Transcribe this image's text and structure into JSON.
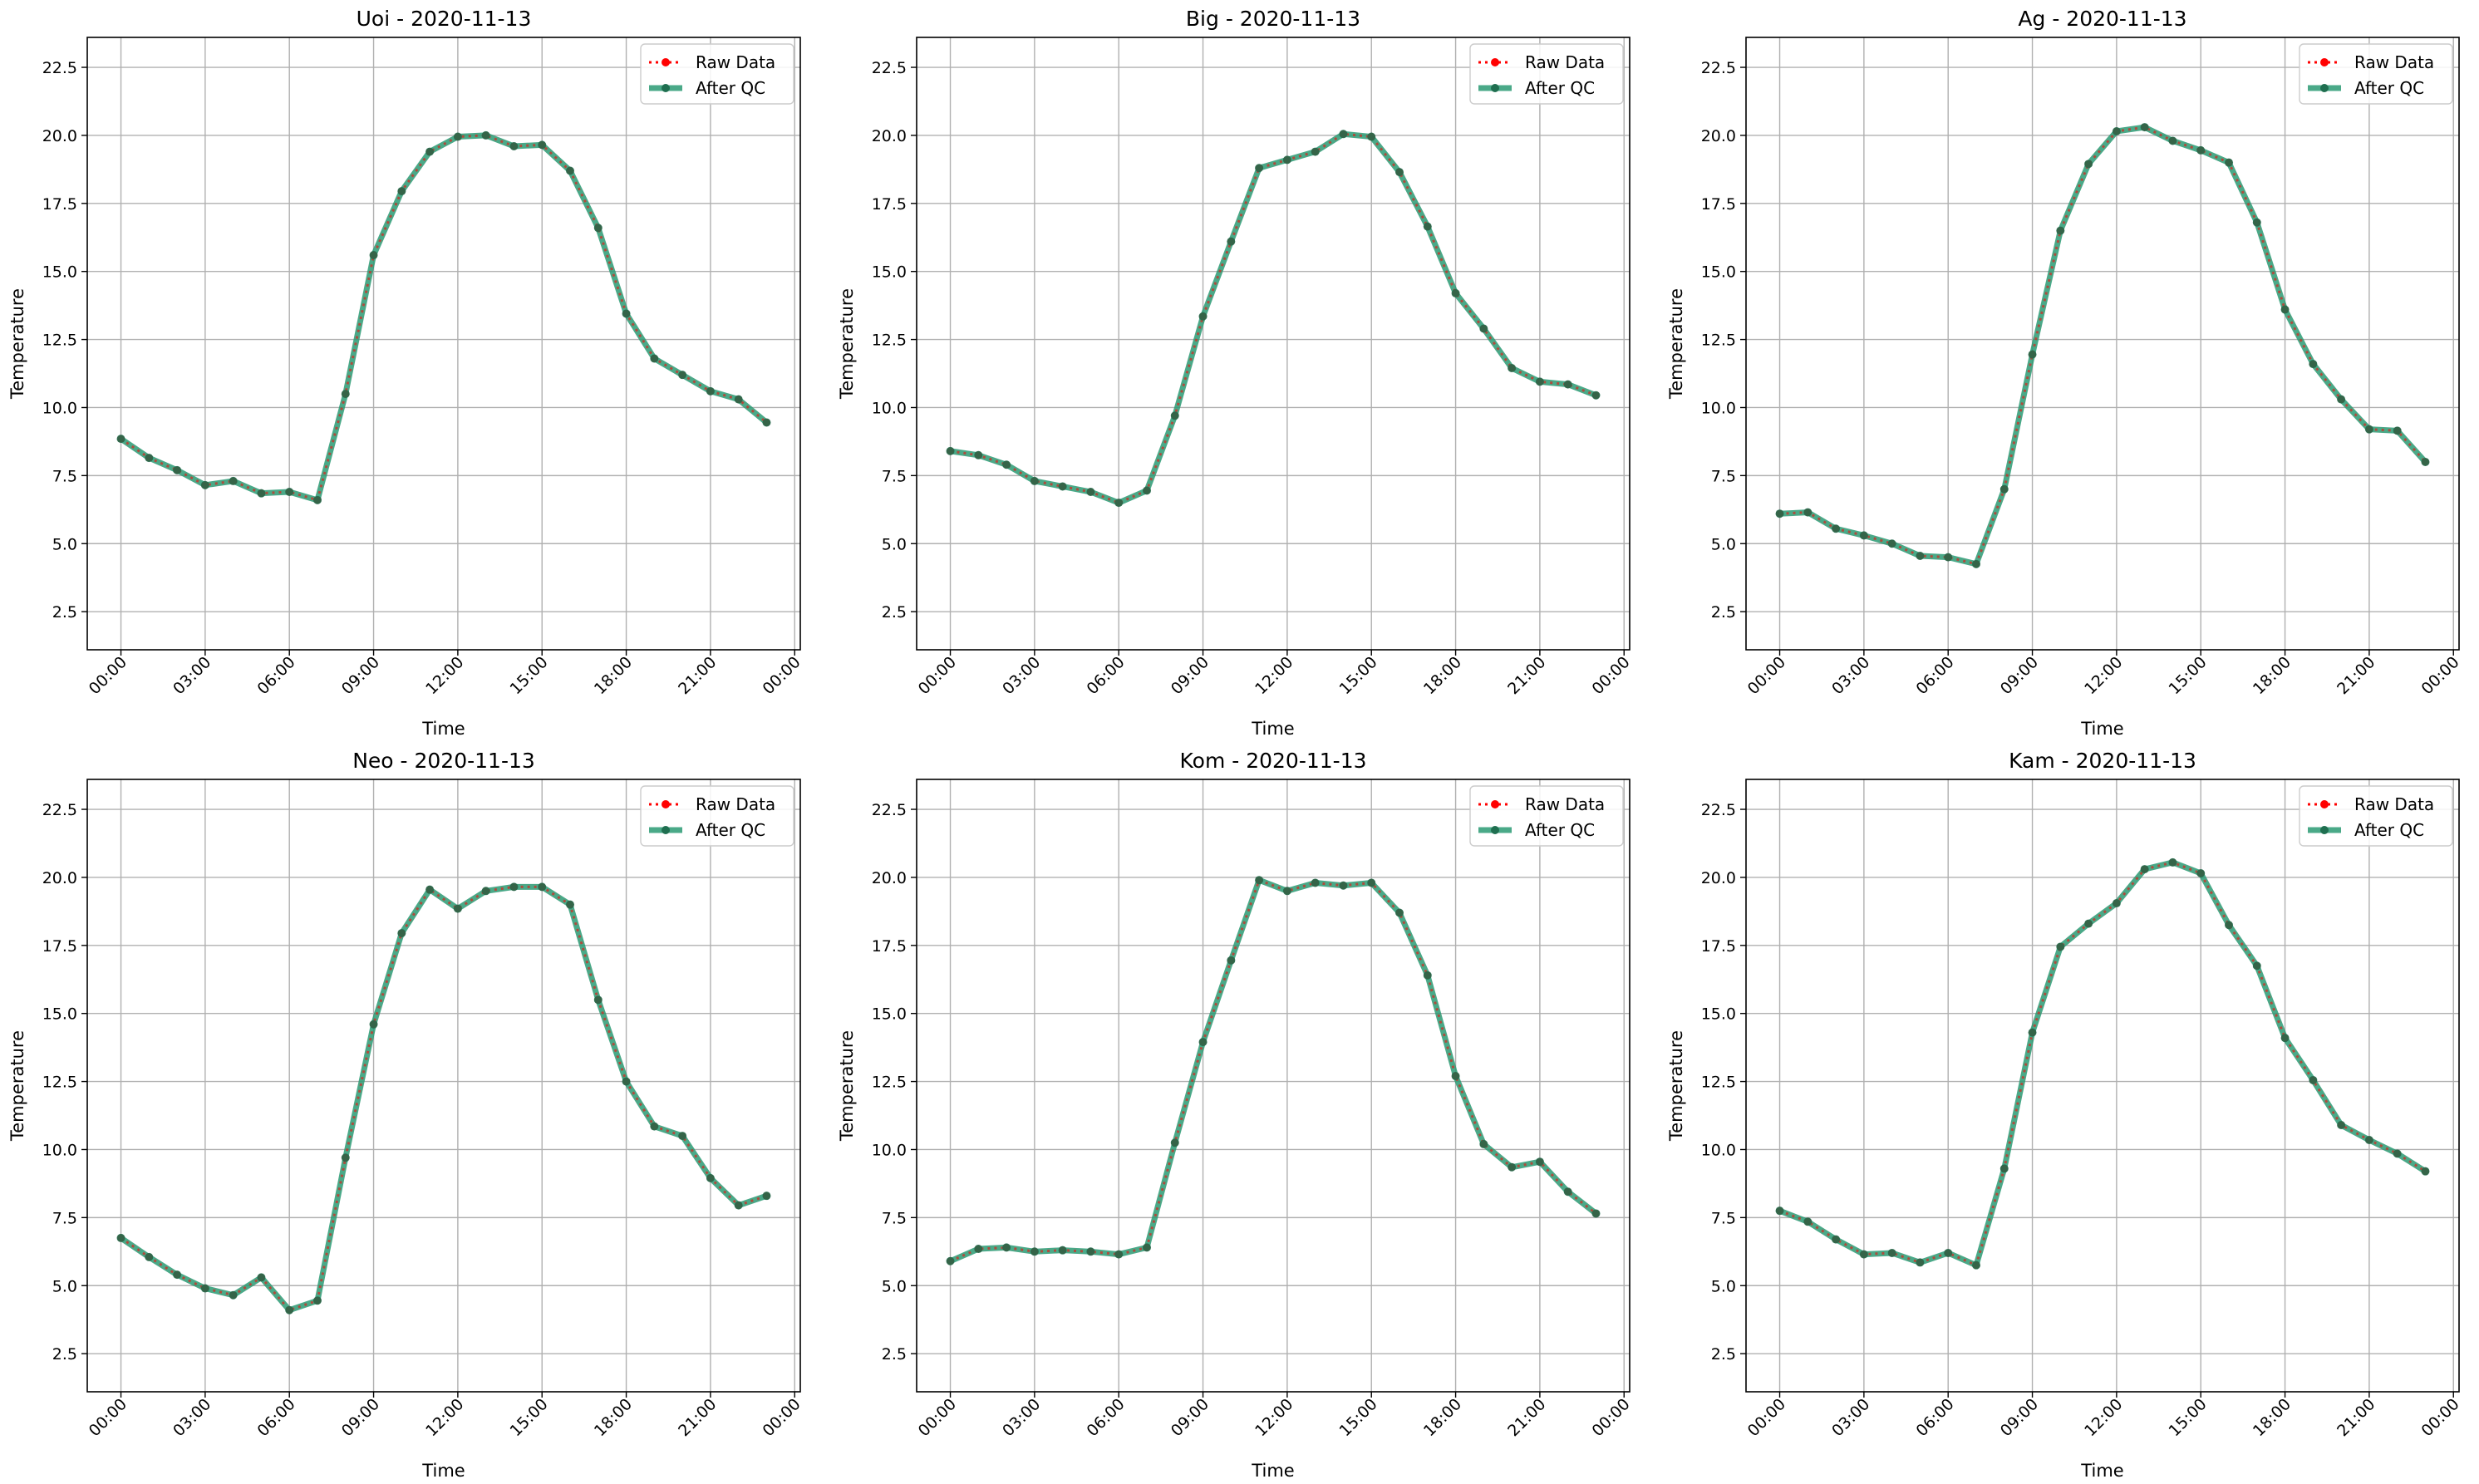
{
  "figure": {
    "colors": {
      "raw": "#ff0000",
      "qc": "#2a9a73",
      "qc_marker": "#1f6f50",
      "grid": "#b0b0b0",
      "axis": "#000000"
    },
    "legend": {
      "raw_label": "Raw Data",
      "qc_label": "After QC",
      "placement": "upper right"
    }
  },
  "chart_data": [
    {
      "type": "line",
      "title": "Uoi - 2020-11-13",
      "xlabel": "Time",
      "ylabel": "Temperature",
      "xlim": [
        -1.2,
        24.2
      ],
      "ylim": [
        1.1,
        23.6
      ],
      "grid": true,
      "x_tick_values": [
        0,
        3,
        6,
        9,
        12,
        15,
        18,
        21,
        24
      ],
      "x_tick_labels": [
        "00:00",
        "03:00",
        "06:00",
        "09:00",
        "12:00",
        "15:00",
        "18:00",
        "21:00",
        "00:00"
      ],
      "y_tick_values": [
        2.5,
        5.0,
        7.5,
        10.0,
        12.5,
        15.0,
        17.5,
        20.0,
        22.5
      ],
      "y_tick_labels": [
        "2.5",
        "5.0",
        "7.5",
        "10.0",
        "12.5",
        "15.0",
        "17.5",
        "20.0",
        "22.5"
      ],
      "x": [
        "00:00",
        "01:00",
        "02:00",
        "03:00",
        "04:00",
        "05:00",
        "06:00",
        "07:00",
        "08:00",
        "09:00",
        "10:00",
        "11:00",
        "12:00",
        "13:00",
        "14:00",
        "15:00",
        "16:00",
        "17:00",
        "18:00",
        "19:00",
        "20:00",
        "21:00",
        "22:00",
        "23:00"
      ],
      "series": [
        {
          "name": "Raw Data",
          "values": [
            8.85,
            8.15,
            7.7,
            7.15,
            7.3,
            6.85,
            6.9,
            6.6,
            10.5,
            15.6,
            17.95,
            19.4,
            19.95,
            20.0,
            19.6,
            19.65,
            18.7,
            16.6,
            13.45,
            11.8,
            11.2,
            10.6,
            10.3,
            9.45
          ]
        },
        {
          "name": "After QC",
          "values": [
            8.85,
            8.15,
            7.7,
            7.15,
            7.3,
            6.85,
            6.9,
            6.6,
            10.5,
            15.6,
            17.95,
            19.4,
            19.95,
            20.0,
            19.6,
            19.65,
            18.7,
            16.6,
            13.45,
            11.8,
            11.2,
            10.6,
            10.3,
            9.45
          ]
        }
      ]
    },
    {
      "type": "line",
      "title": "Big - 2020-11-13",
      "xlabel": "Time",
      "ylabel": "Temperature",
      "xlim": [
        -1.2,
        24.2
      ],
      "ylim": [
        1.1,
        23.6
      ],
      "grid": true,
      "x_tick_values": [
        0,
        3,
        6,
        9,
        12,
        15,
        18,
        21,
        24
      ],
      "x_tick_labels": [
        "00:00",
        "03:00",
        "06:00",
        "09:00",
        "12:00",
        "15:00",
        "18:00",
        "21:00",
        "00:00"
      ],
      "y_tick_values": [
        2.5,
        5.0,
        7.5,
        10.0,
        12.5,
        15.0,
        17.5,
        20.0,
        22.5
      ],
      "y_tick_labels": [
        "2.5",
        "5.0",
        "7.5",
        "10.0",
        "12.5",
        "15.0",
        "17.5",
        "20.0",
        "22.5"
      ],
      "x": [
        "00:00",
        "01:00",
        "02:00",
        "03:00",
        "04:00",
        "05:00",
        "06:00",
        "07:00",
        "08:00",
        "09:00",
        "10:00",
        "11:00",
        "12:00",
        "13:00",
        "14:00",
        "15:00",
        "16:00",
        "17:00",
        "18:00",
        "19:00",
        "20:00",
        "21:00",
        "22:00",
        "23:00"
      ],
      "series": [
        {
          "name": "Raw Data",
          "values": [
            8.4,
            8.25,
            7.9,
            7.3,
            7.1,
            6.9,
            6.5,
            6.95,
            9.7,
            13.35,
            16.1,
            18.8,
            19.1,
            19.4,
            20.05,
            19.95,
            18.65,
            16.65,
            14.2,
            12.9,
            11.45,
            10.95,
            10.85,
            10.45
          ]
        },
        {
          "name": "After QC",
          "values": [
            8.4,
            8.25,
            7.9,
            7.3,
            7.1,
            6.9,
            6.5,
            6.95,
            9.7,
            13.35,
            16.1,
            18.8,
            19.1,
            19.4,
            20.05,
            19.95,
            18.65,
            16.65,
            14.2,
            12.9,
            11.45,
            10.95,
            10.85,
            10.45
          ]
        }
      ]
    },
    {
      "type": "line",
      "title": "Ag - 2020-11-13",
      "xlabel": "Time",
      "ylabel": "Temperature",
      "xlim": [
        -1.2,
        24.2
      ],
      "ylim": [
        1.1,
        23.6
      ],
      "grid": true,
      "x_tick_values": [
        0,
        3,
        6,
        9,
        12,
        15,
        18,
        21,
        24
      ],
      "x_tick_labels": [
        "00:00",
        "03:00",
        "06:00",
        "09:00",
        "12:00",
        "15:00",
        "18:00",
        "21:00",
        "00:00"
      ],
      "y_tick_values": [
        2.5,
        5.0,
        7.5,
        10.0,
        12.5,
        15.0,
        17.5,
        20.0,
        22.5
      ],
      "y_tick_labels": [
        "2.5",
        "5.0",
        "7.5",
        "10.0",
        "12.5",
        "15.0",
        "17.5",
        "20.0",
        "22.5"
      ],
      "x": [
        "00:00",
        "01:00",
        "02:00",
        "03:00",
        "04:00",
        "05:00",
        "06:00",
        "07:00",
        "08:00",
        "09:00",
        "10:00",
        "11:00",
        "12:00",
        "13:00",
        "14:00",
        "15:00",
        "16:00",
        "17:00",
        "18:00",
        "19:00",
        "20:00",
        "21:00",
        "22:00",
        "23:00"
      ],
      "series": [
        {
          "name": "Raw Data",
          "values": [
            6.1,
            6.15,
            5.55,
            5.3,
            5.0,
            4.55,
            4.5,
            4.25,
            7.0,
            11.95,
            16.5,
            18.95,
            20.15,
            20.3,
            19.8,
            19.45,
            19.0,
            16.8,
            13.6,
            11.6,
            10.3,
            9.2,
            9.15,
            8.0
          ]
        },
        {
          "name": "After QC",
          "values": [
            6.1,
            6.15,
            5.55,
            5.3,
            5.0,
            4.55,
            4.5,
            4.25,
            7.0,
            11.95,
            16.5,
            18.95,
            20.15,
            20.3,
            19.8,
            19.45,
            19.0,
            16.8,
            13.6,
            11.6,
            10.3,
            9.2,
            9.15,
            8.0
          ]
        }
      ]
    },
    {
      "type": "line",
      "title": "Neo - 2020-11-13",
      "xlabel": "Time",
      "ylabel": "Temperature",
      "xlim": [
        -1.2,
        24.2
      ],
      "ylim": [
        1.1,
        23.6
      ],
      "grid": true,
      "x_tick_values": [
        0,
        3,
        6,
        9,
        12,
        15,
        18,
        21,
        24
      ],
      "x_tick_labels": [
        "00:00",
        "03:00",
        "06:00",
        "09:00",
        "12:00",
        "15:00",
        "18:00",
        "21:00",
        "00:00"
      ],
      "y_tick_values": [
        2.5,
        5.0,
        7.5,
        10.0,
        12.5,
        15.0,
        17.5,
        20.0,
        22.5
      ],
      "y_tick_labels": [
        "2.5",
        "5.0",
        "7.5",
        "10.0",
        "12.5",
        "15.0",
        "17.5",
        "20.0",
        "22.5"
      ],
      "x": [
        "00:00",
        "01:00",
        "02:00",
        "03:00",
        "04:00",
        "05:00",
        "06:00",
        "07:00",
        "08:00",
        "09:00",
        "10:00",
        "11:00",
        "12:00",
        "13:00",
        "14:00",
        "15:00",
        "16:00",
        "17:00",
        "18:00",
        "19:00",
        "20:00",
        "21:00",
        "22:00",
        "23:00"
      ],
      "series": [
        {
          "name": "Raw Data",
          "values": [
            6.75,
            6.05,
            5.4,
            4.9,
            4.65,
            5.3,
            4.1,
            4.45,
            9.7,
            14.6,
            17.95,
            19.55,
            18.85,
            19.5,
            19.65,
            19.65,
            19.0,
            15.5,
            12.5,
            10.85,
            10.5,
            8.95,
            7.95,
            8.3
          ]
        },
        {
          "name": "After QC",
          "values": [
            6.75,
            6.05,
            5.4,
            4.9,
            4.65,
            5.3,
            4.1,
            4.45,
            9.7,
            14.6,
            17.95,
            19.55,
            18.85,
            19.5,
            19.65,
            19.65,
            19.0,
            15.5,
            12.5,
            10.85,
            10.5,
            8.95,
            7.95,
            8.3
          ]
        }
      ]
    },
    {
      "type": "line",
      "title": "Kom - 2020-11-13",
      "xlabel": "Time",
      "ylabel": "Temperature",
      "xlim": [
        -1.2,
        24.2
      ],
      "ylim": [
        1.1,
        23.6
      ],
      "grid": true,
      "x_tick_values": [
        0,
        3,
        6,
        9,
        12,
        15,
        18,
        21,
        24
      ],
      "x_tick_labels": [
        "00:00",
        "03:00",
        "06:00",
        "09:00",
        "12:00",
        "15:00",
        "18:00",
        "21:00",
        "00:00"
      ],
      "y_tick_values": [
        2.5,
        5.0,
        7.5,
        10.0,
        12.5,
        15.0,
        17.5,
        20.0,
        22.5
      ],
      "y_tick_labels": [
        "2.5",
        "5.0",
        "7.5",
        "10.0",
        "12.5",
        "15.0",
        "17.5",
        "20.0",
        "22.5"
      ],
      "x": [
        "00:00",
        "01:00",
        "02:00",
        "03:00",
        "04:00",
        "05:00",
        "06:00",
        "07:00",
        "08:00",
        "09:00",
        "10:00",
        "11:00",
        "12:00",
        "13:00",
        "14:00",
        "15:00",
        "16:00",
        "17:00",
        "18:00",
        "19:00",
        "20:00",
        "21:00",
        "22:00",
        "23:00"
      ],
      "series": [
        {
          "name": "Raw Data",
          "values": [
            5.9,
            6.35,
            6.4,
            6.25,
            6.3,
            6.25,
            6.15,
            6.4,
            10.25,
            13.95,
            16.95,
            19.9,
            19.5,
            19.8,
            19.7,
            19.8,
            18.7,
            16.4,
            12.7,
            10.2,
            9.35,
            9.55,
            8.45,
            7.65
          ]
        },
        {
          "name": "After QC",
          "values": [
            5.9,
            6.35,
            6.4,
            6.25,
            6.3,
            6.25,
            6.15,
            6.4,
            10.25,
            13.95,
            16.95,
            19.9,
            19.5,
            19.8,
            19.7,
            19.8,
            18.7,
            16.4,
            12.7,
            10.2,
            9.35,
            9.55,
            8.45,
            7.65
          ]
        }
      ]
    },
    {
      "type": "line",
      "title": "Kam - 2020-11-13",
      "xlabel": "Time",
      "ylabel": "Temperature",
      "xlim": [
        -1.2,
        24.2
      ],
      "ylim": [
        1.1,
        23.6
      ],
      "grid": true,
      "x_tick_values": [
        0,
        3,
        6,
        9,
        12,
        15,
        18,
        21,
        24
      ],
      "x_tick_labels": [
        "00:00",
        "03:00",
        "06:00",
        "09:00",
        "12:00",
        "15:00",
        "18:00",
        "21:00",
        "00:00"
      ],
      "y_tick_values": [
        2.5,
        5.0,
        7.5,
        10.0,
        12.5,
        15.0,
        17.5,
        20.0,
        22.5
      ],
      "y_tick_labels": [
        "2.5",
        "5.0",
        "7.5",
        "10.0",
        "12.5",
        "15.0",
        "17.5",
        "20.0",
        "22.5"
      ],
      "x": [
        "00:00",
        "01:00",
        "02:00",
        "03:00",
        "04:00",
        "05:00",
        "06:00",
        "07:00",
        "08:00",
        "09:00",
        "10:00",
        "11:00",
        "12:00",
        "13:00",
        "14:00",
        "15:00",
        "16:00",
        "17:00",
        "18:00",
        "19:00",
        "20:00",
        "21:00",
        "22:00",
        "23:00"
      ],
      "series": [
        {
          "name": "Raw Data",
          "values": [
            7.75,
            7.35,
            6.7,
            6.15,
            6.2,
            5.85,
            6.2,
            5.75,
            9.3,
            14.3,
            17.45,
            18.3,
            19.05,
            20.3,
            20.55,
            20.15,
            18.25,
            16.75,
            14.1,
            12.55,
            10.9,
            10.35,
            9.85,
            9.2
          ]
        },
        {
          "name": "After QC",
          "values": [
            7.75,
            7.35,
            6.7,
            6.15,
            6.2,
            5.85,
            6.2,
            5.75,
            9.3,
            14.3,
            17.45,
            18.3,
            19.05,
            20.3,
            20.55,
            20.15,
            18.25,
            16.75,
            14.1,
            12.55,
            10.9,
            10.35,
            9.85,
            9.2
          ]
        }
      ]
    }
  ]
}
